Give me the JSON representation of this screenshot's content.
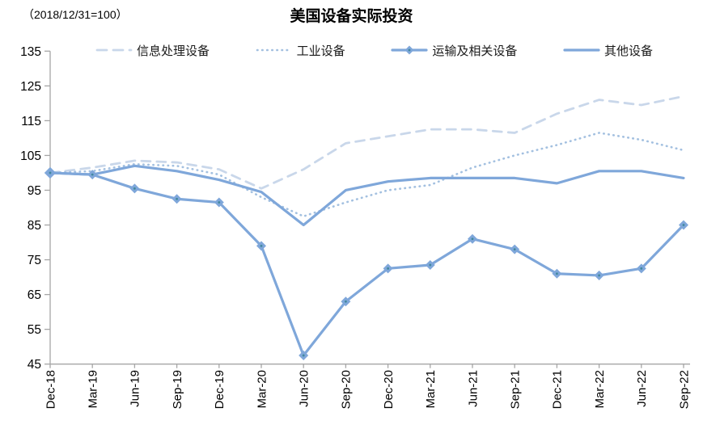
{
  "header": {
    "unit_label": "（2018/12/31=100）",
    "title": "美国设备实际投资"
  },
  "chart_data": {
    "type": "line",
    "title": "美国设备实际投资",
    "unit_note": "（2018/12/31=100）",
    "categories": [
      "Dec-18",
      "Mar-19",
      "Jun-19",
      "Sep-19",
      "Dec-19",
      "Mar-20",
      "Jun-20",
      "Sep-20",
      "Dec-20",
      "Mar-21",
      "Jun-21",
      "Sep-21",
      "Dec-21",
      "Mar-22",
      "Jun-22",
      "Sep-22"
    ],
    "series": [
      {
        "name": "信息处理设备",
        "style": "dashed",
        "color": "#C9D7EA",
        "values": [
          100,
          101.5,
          103.5,
          103,
          101,
          95.5,
          101,
          108.5,
          110.5,
          112.5,
          112.5,
          111.5,
          117,
          121,
          119.5,
          122
        ]
      },
      {
        "name": "工业设备",
        "style": "dotted",
        "color": "#A3C0E0",
        "values": [
          100,
          100.5,
          102.5,
          102,
          99.5,
          93,
          87.5,
          91.5,
          95,
          96.5,
          101.5,
          105,
          108,
          111.5,
          109.5,
          106.5
        ]
      },
      {
        "name": "运输及相关设备",
        "style": "solid",
        "marker": "diamond",
        "color": "#7FA7DA",
        "marker_center_color": "#41889E",
        "values": [
          100,
          99.5,
          95.5,
          92.5,
          91.5,
          79,
          47.5,
          63,
          72.5,
          73.5,
          81,
          78,
          71,
          70.5,
          72.5,
          85
        ]
      },
      {
        "name": "其他设备",
        "style": "solid",
        "color": "#7FA7DA",
        "values": [
          100,
          99.5,
          102,
          100.5,
          98,
          94.5,
          85,
          95,
          97.5,
          98.5,
          98.5,
          98.5,
          97,
          100.5,
          100.5,
          98.5
        ]
      }
    ],
    "ylim": [
      45,
      135
    ],
    "yticks": [
      135,
      125,
      115,
      105,
      95,
      85,
      75,
      65,
      55,
      45
    ],
    "grid": false,
    "legend_position": "top",
    "axis_color": "#A6A6A6"
  }
}
